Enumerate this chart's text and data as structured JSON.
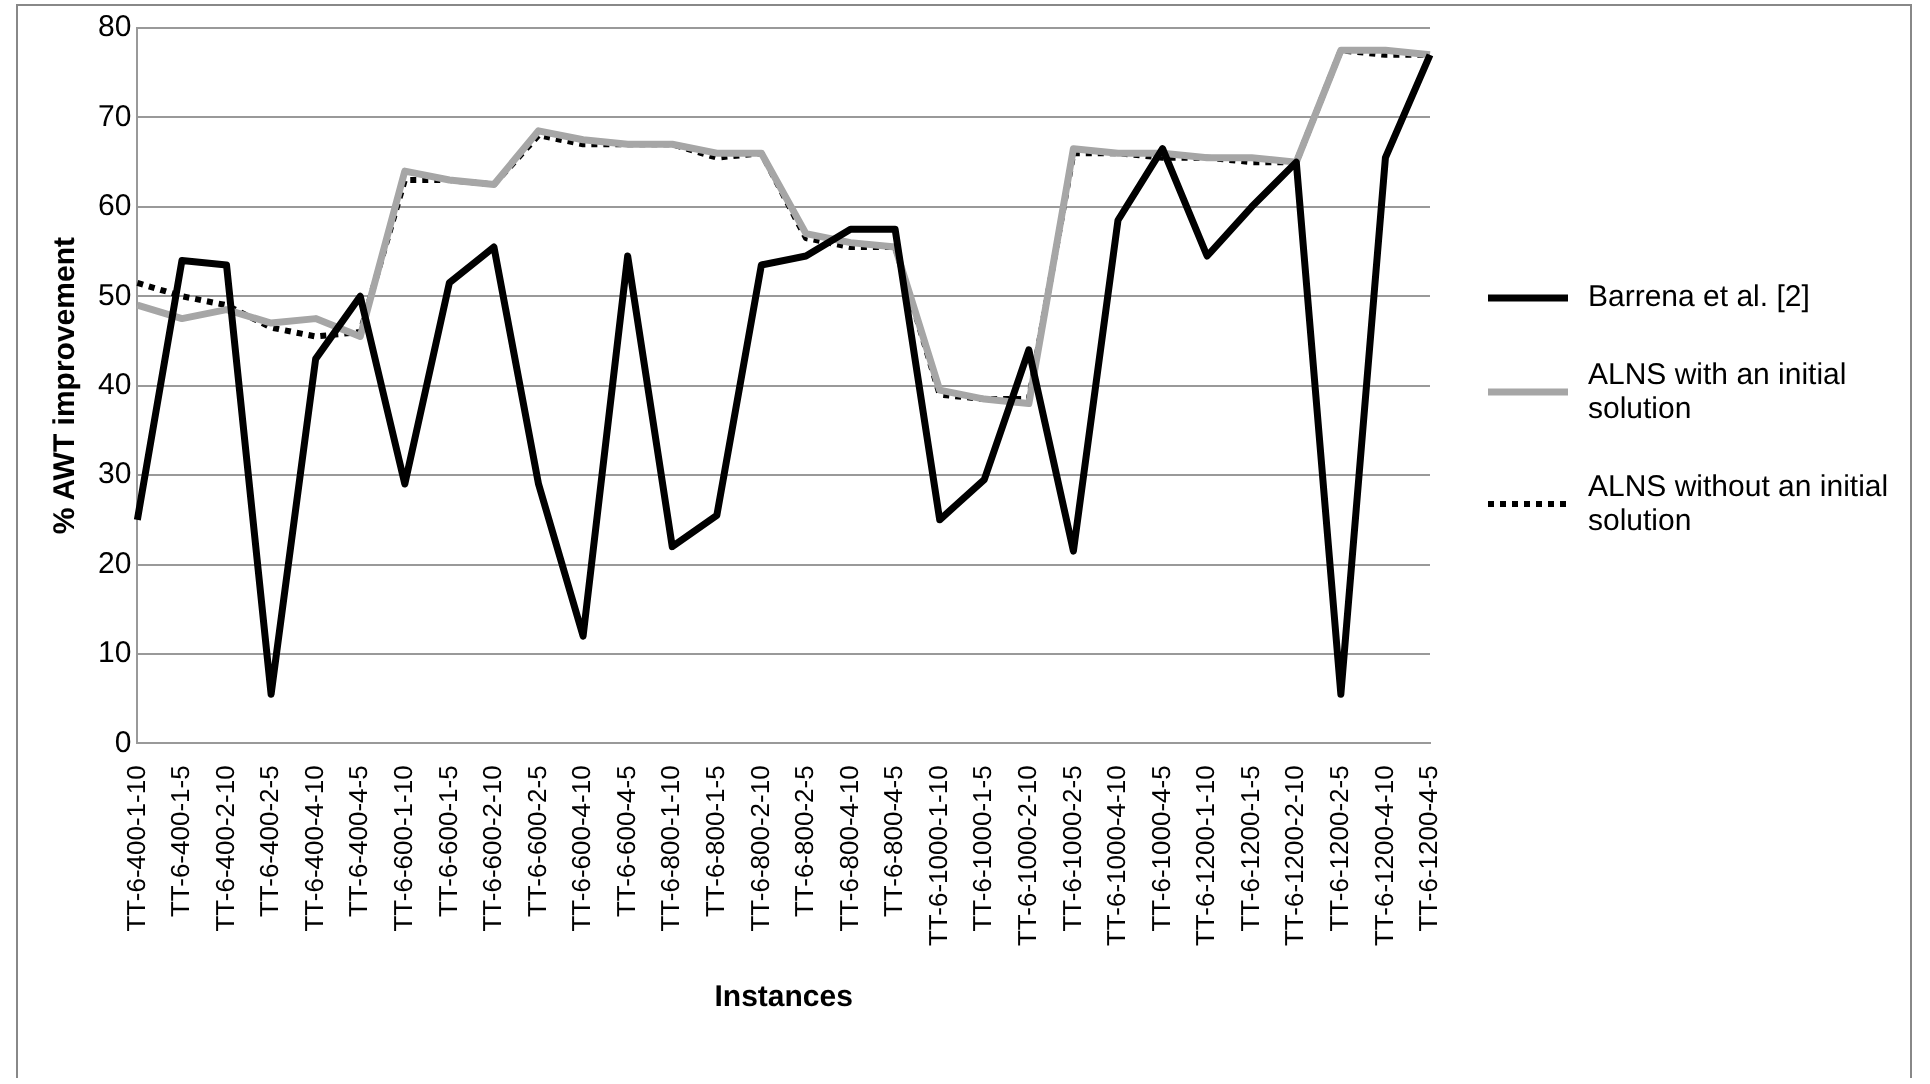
{
  "chart_data": {
    "type": "line",
    "xlabel": "Instances",
    "ylabel": "% AWT improvement",
    "categories": [
      "TT-6-400-1-10",
      "TT-6-400-1-5",
      "TT-6-400-2-10",
      "TT-6-400-2-5",
      "TT-6-400-4-10",
      "TT-6-400-4-5",
      "TT-6-600-1-10",
      "TT-6-600-1-5",
      "TT-6-600-2-10",
      "TT-6-600-2-5",
      "TT-6-600-4-10",
      "TT-6-600-4-5",
      "TT-6-800-1-10",
      "TT-6-800-1-5",
      "TT-6-800-2-10",
      "TT-6-800-2-5",
      "TT-6-800-4-10",
      "TT-6-800-4-5",
      "TT-6-1000-1-10",
      "TT-6-1000-1-5",
      "TT-6-1000-2-10",
      "TT-6-1000-2-5",
      "TT-6-1000-4-10",
      "TT-6-1000-4-5",
      "TT-6-1200-1-10",
      "TT-6-1200-1-5",
      "TT-6-1200-2-10",
      "TT-6-1200-2-5",
      "TT-6-1200-4-10",
      "TT-6-1200-4-5"
    ],
    "series": [
      {
        "name": "Barrena et al. [2]",
        "color": "#000000",
        "line_style": "solid",
        "values": [
          25,
          54,
          53.5,
          5.5,
          43,
          50,
          29,
          51.5,
          55.5,
          29,
          12,
          54.5,
          22,
          25.5,
          53.5,
          54.5,
          57.5,
          57.5,
          25,
          29.5,
          44,
          21.5,
          58.5,
          66.5,
          54.5,
          60,
          65,
          5.5,
          65.5,
          77
        ]
      },
      {
        "name": "ALNS with an initial solution",
        "color": "#a6a6a6",
        "line_style": "solid",
        "values": [
          49,
          47.5,
          48.5,
          47,
          47.5,
          45.5,
          64,
          63,
          62.5,
          68.5,
          67.5,
          67,
          67,
          66,
          66,
          57,
          56,
          55.5,
          39.5,
          38.5,
          38,
          66.5,
          66,
          66,
          65.5,
          65.5,
          65,
          77.5,
          77.5,
          77
        ]
      },
      {
        "name": "ALNS without an initial solution",
        "color": "#000000",
        "line_style": "dotted",
        "values": [
          51.5,
          50,
          49,
          46.5,
          45.5,
          46,
          63,
          63,
          62.5,
          68,
          67,
          67,
          67,
          65.5,
          66,
          56.5,
          55.5,
          55.5,
          39,
          38.5,
          38.5,
          66,
          66,
          65.5,
          65.5,
          65,
          65,
          77.5,
          77,
          77
        ]
      }
    ],
    "ylim": [
      0,
      80
    ],
    "yticks": [
      0,
      10,
      20,
      30,
      40,
      50,
      60,
      70,
      80
    ],
    "grid": "y",
    "legend": "right",
    "marker": "none"
  }
}
